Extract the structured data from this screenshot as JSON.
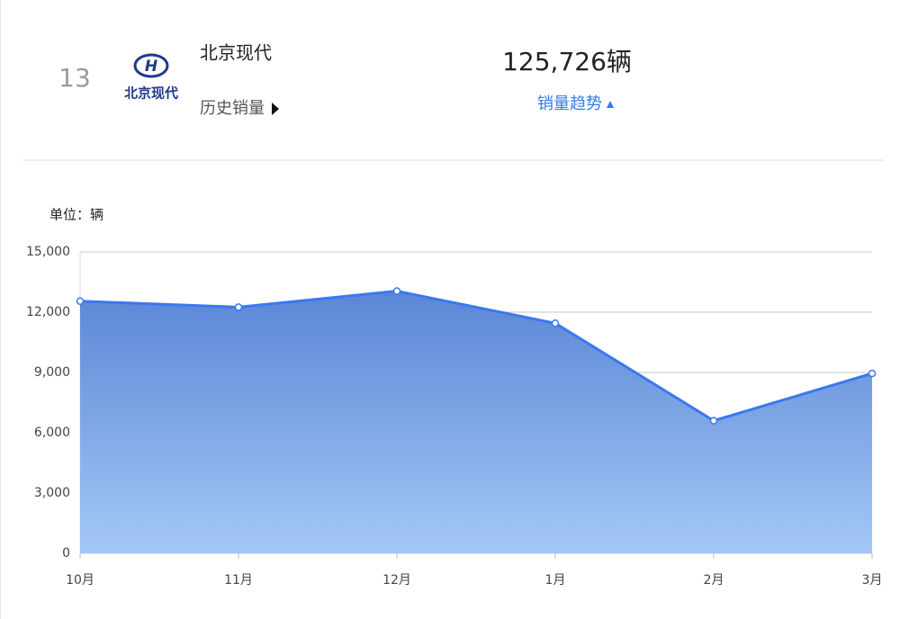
{
  "header": {
    "rank": "13",
    "logo_text": "北京现代",
    "brand": "北京现代",
    "history_link": "历史销量",
    "sales": "125,726辆",
    "trend_link": "销量趋势"
  },
  "chart_data": {
    "type": "area",
    "y_label": "单位：辆",
    "categories": [
      "10月",
      "11月",
      "12月",
      "1月",
      "2月",
      "3月"
    ],
    "values": [
      12550,
      12250,
      13050,
      11450,
      6600,
      8950
    ],
    "color": "#3a78f0",
    "ylim": [
      0,
      15000
    ],
    "yticks": [
      0,
      {
        "value": 3000,
        "label": "3,000"
      },
      {
        "value": 6000,
        "label": "6,000"
      },
      {
        "value": 9000,
        "label": "9,000"
      },
      {
        "value": 12000,
        "label": "12,000"
      },
      {
        "value": 15000,
        "label": "15,000"
      }
    ],
    "grid": true
  }
}
